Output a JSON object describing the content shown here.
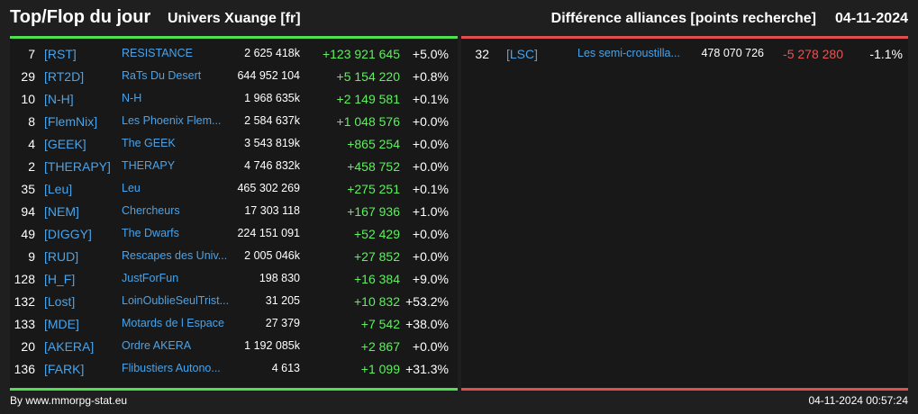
{
  "header": {
    "title": "Top/Flop du jour",
    "universe": "Univers Xuange [fr]",
    "category": "Différence alliances [points recherche]",
    "date": "04-11-2024"
  },
  "colors": {
    "top_accent": "#4ee04e",
    "flop_accent": "#e04e4e",
    "tag_color": "#4aa3e8",
    "positive": "#5ef05e",
    "negative": "#e85454"
  },
  "top": [
    {
      "rank": "7",
      "tag": "[RST]",
      "name": "RESISTANCE",
      "points": "2 625 418k",
      "diff": "+123 921 645",
      "pct": "+5.0%"
    },
    {
      "rank": "29",
      "tag": "[RT2D]",
      "name": "RaTs Du Desert",
      "points": "644 952 104",
      "diff": "+5 154 220",
      "pct": "+0.8%"
    },
    {
      "rank": "10",
      "tag": "[N-H]",
      "name": "N-H",
      "points": "1 968 635k",
      "diff": "+2 149 581",
      "pct": "+0.1%"
    },
    {
      "rank": "8",
      "tag": "[FlemNix]",
      "name": "Les Phoenix Flem...",
      "points": "2 584 637k",
      "diff": "+1 048 576",
      "pct": "+0.0%"
    },
    {
      "rank": "4",
      "tag": "[GEEK]",
      "name": "The GEEK",
      "points": "3 543 819k",
      "diff": "+865 254",
      "pct": "+0.0%"
    },
    {
      "rank": "2",
      "tag": "[THERAPY]",
      "name": "THERAPY",
      "points": "4 746 832k",
      "diff": "+458 752",
      "pct": "+0.0%"
    },
    {
      "rank": "35",
      "tag": "[Leu]",
      "name": "Leu",
      "points": "465 302 269",
      "diff": "+275 251",
      "pct": "+0.1%"
    },
    {
      "rank": "94",
      "tag": "[NEM]",
      "name": "Chercheurs",
      "points": "17 303 118",
      "diff": "+167 936",
      "pct": "+1.0%"
    },
    {
      "rank": "49",
      "tag": "[DIGGY]",
      "name": "The Dwarfs",
      "points": "224 151 091",
      "diff": "+52 429",
      "pct": "+0.0%"
    },
    {
      "rank": "9",
      "tag": "[RUD]",
      "name": "Rescapes des Univ...",
      "points": "2 005 046k",
      "diff": "+27 852",
      "pct": "+0.0%"
    },
    {
      "rank": "128",
      "tag": "[H_F]",
      "name": "JustForFun",
      "points": "198 830",
      "diff": "+16 384",
      "pct": "+9.0%"
    },
    {
      "rank": "132",
      "tag": "[Lost]",
      "name": "LoinOublieSeulTrist...",
      "points": "31 205",
      "diff": "+10 832",
      "pct": "+53.2%"
    },
    {
      "rank": "133",
      "tag": "[MDE]",
      "name": "Motards de l Espace",
      "points": "27 379",
      "diff": "+7 542",
      "pct": "+38.0%"
    },
    {
      "rank": "20",
      "tag": "[AKERA]",
      "name": "Ordre AKERA",
      "points": "1 192 085k",
      "diff": "+2 867",
      "pct": "+0.0%"
    },
    {
      "rank": "136",
      "tag": "[FARK]",
      "name": "Flibustiers Autono...",
      "points": "4 613",
      "diff": "+1 099",
      "pct": "+31.3%"
    }
  ],
  "flop": [
    {
      "rank": "32",
      "tag": "[LSC]",
      "name": "Les semi-croustilla...",
      "points": "478 070 726",
      "diff": "-5 278 280",
      "pct": "-1.1%"
    }
  ],
  "footer": {
    "source": "By www.mmorpg-stat.eu",
    "timestamp": "04-11-2024 00:57:24"
  }
}
